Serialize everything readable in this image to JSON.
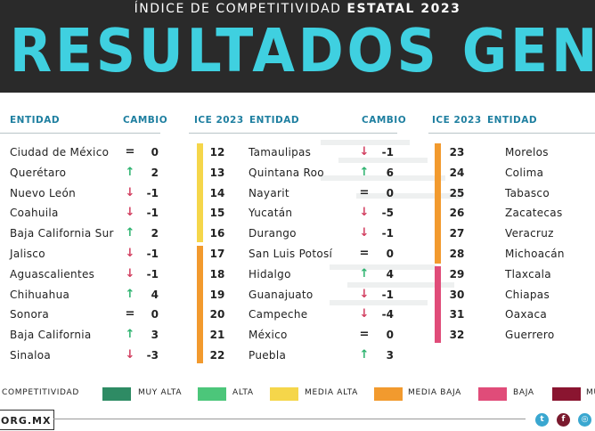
{
  "header": {
    "subtitle_prefix": "ÍNDICE DE COMPETITIVIDAD",
    "subtitle_bold": "ESTATAL 2023",
    "title": "RESULTADOS GENERALES"
  },
  "columns": {
    "entidad": "ENTIDAD",
    "cambio": "CAMBIO",
    "ice": "ICE 2023"
  },
  "col1": [
    {
      "entidad": "Ciudad de México",
      "arrow": "=",
      "dir": "eq",
      "cambio": "0"
    },
    {
      "entidad": "Querétaro",
      "arrow": "↑",
      "dir": "up",
      "cambio": "2"
    },
    {
      "entidad": "Nuevo León",
      "arrow": "↓",
      "dir": "down",
      "cambio": "-1"
    },
    {
      "entidad": "Coahuila",
      "arrow": "↓",
      "dir": "down",
      "cambio": "-1"
    },
    {
      "entidad": "Baja California Sur",
      "arrow": "↑",
      "dir": "up",
      "cambio": "2"
    },
    {
      "entidad": "Jalisco",
      "arrow": "↓",
      "dir": "down",
      "cambio": "-1"
    },
    {
      "entidad": "Aguascalientes",
      "arrow": "↓",
      "dir": "down",
      "cambio": "-1"
    },
    {
      "entidad": "Chihuahua",
      "arrow": "↑",
      "dir": "up",
      "cambio": "4"
    },
    {
      "entidad": "Sonora",
      "arrow": "=",
      "dir": "eq",
      "cambio": "0"
    },
    {
      "entidad": "Baja California",
      "arrow": "↑",
      "dir": "up",
      "cambio": "3"
    },
    {
      "entidad": "Sinaloa",
      "arrow": "↓",
      "dir": "down",
      "cambio": "-3"
    }
  ],
  "col2": [
    {
      "rank": "12",
      "entidad": "Tamaulipas",
      "arrow": "↓",
      "dir": "down",
      "cambio": "-1"
    },
    {
      "rank": "13",
      "entidad": "Quintana Roo",
      "arrow": "↑",
      "dir": "up",
      "cambio": "6"
    },
    {
      "rank": "14",
      "entidad": "Nayarit",
      "arrow": "=",
      "dir": "eq",
      "cambio": "0"
    },
    {
      "rank": "15",
      "entidad": "Yucatán",
      "arrow": "↓",
      "dir": "down",
      "cambio": "-5"
    },
    {
      "rank": "16",
      "entidad": "Durango",
      "arrow": "↓",
      "dir": "down",
      "cambio": "-1"
    },
    {
      "rank": "17",
      "entidad": "San Luis Potosí",
      "arrow": "=",
      "dir": "eq",
      "cambio": "0"
    },
    {
      "rank": "18",
      "entidad": "Hidalgo",
      "arrow": "↑",
      "dir": "up",
      "cambio": "4"
    },
    {
      "rank": "19",
      "entidad": "Guanajuato",
      "arrow": "↓",
      "dir": "down",
      "cambio": "-1"
    },
    {
      "rank": "20",
      "entidad": "Campeche",
      "arrow": "↓",
      "dir": "down",
      "cambio": "-4"
    },
    {
      "rank": "21",
      "entidad": "México",
      "arrow": "=",
      "dir": "eq",
      "cambio": "0"
    },
    {
      "rank": "22",
      "entidad": "Puebla",
      "arrow": "↑",
      "dir": "up",
      "cambio": "3"
    }
  ],
  "col3": [
    {
      "rank": "23",
      "entidad": "Morelos"
    },
    {
      "rank": "24",
      "entidad": "Colima"
    },
    {
      "rank": "25",
      "entidad": "Tabasco"
    },
    {
      "rank": "26",
      "entidad": "Zacatecas"
    },
    {
      "rank": "27",
      "entidad": "Veracruz"
    },
    {
      "rank": "28",
      "entidad": "Michoacán"
    },
    {
      "rank": "29",
      "entidad": "Tlaxcala"
    },
    {
      "rank": "30",
      "entidad": "Chiapas"
    },
    {
      "rank": "31",
      "entidad": "Oaxaca"
    },
    {
      "rank": "32",
      "entidad": "Guerrero"
    }
  ],
  "legend": {
    "prefix": "COMPETITIVIDAD",
    "items": [
      {
        "label": "MUY ALTA",
        "color": "#2e8b64"
      },
      {
        "label": "ALTA",
        "color": "#4cc67a"
      },
      {
        "label": "MEDIA ALTA",
        "color": "#f5d64a"
      },
      {
        "label": "MEDIA BAJA",
        "color": "#f29a2e"
      },
      {
        "label": "BAJA",
        "color": "#e04c79"
      },
      {
        "label": "MU",
        "color": "#8a1530"
      }
    ]
  },
  "footer": {
    "url": "ORG.MX",
    "social": [
      "twitter-icon",
      "facebook-icon",
      "instagram-icon"
    ]
  },
  "colors": {
    "title": "#3fd0e0",
    "header_bg": "#2a2a2a",
    "column_head": "#1e7fa0",
    "media_alta": "#f5d64a",
    "media_baja": "#f29a2e",
    "baja": "#e04c79"
  }
}
